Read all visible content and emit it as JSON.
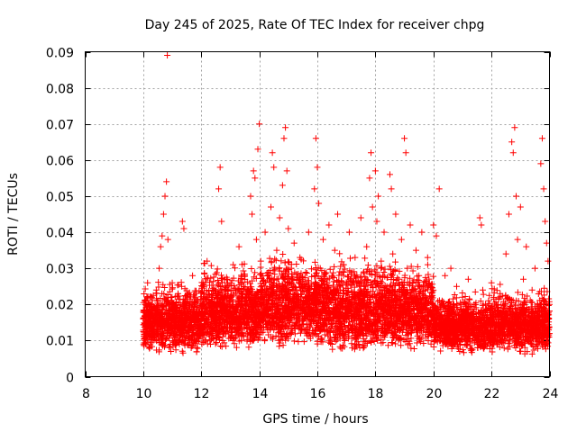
{
  "chart_data": {
    "type": "scatter",
    "title": "Day 245 of 2025, Rate Of TEC Index for receiver chpg",
    "xlabel": "GPS time / hours",
    "ylabel": "ROTI / TECUs",
    "xlim": [
      8,
      24
    ],
    "ylim": [
      0,
      0.09
    ],
    "x_ticks": [
      "8",
      "10",
      "12",
      "14",
      "16",
      "18",
      "20",
      "22",
      "24"
    ],
    "y_ticks": [
      "0",
      "0.01",
      "0.02",
      "0.03",
      "0.04",
      "0.05",
      "0.06",
      "0.07",
      "0.08",
      "0.09"
    ],
    "grid": true,
    "marker": "plus",
    "color": "#ff0000",
    "series": [
      {
        "points": [
          [
            10.0,
            0.016
          ],
          [
            10.05,
            0.021
          ],
          [
            10.1,
            0.012
          ],
          [
            10.15,
            0.026
          ],
          [
            10.2,
            0.018
          ],
          [
            10.25,
            0.014
          ],
          [
            10.3,
            0.022
          ],
          [
            10.35,
            0.011
          ],
          [
            10.4,
            0.019
          ],
          [
            10.45,
            0.024
          ],
          [
            10.5,
            0.015
          ],
          [
            10.55,
            0.03
          ],
          [
            10.6,
            0.036
          ],
          [
            10.65,
            0.039
          ],
          [
            10.7,
            0.045
          ],
          [
            10.75,
            0.05
          ],
          [
            10.8,
            0.054
          ],
          [
            10.83,
            0.089
          ],
          [
            10.85,
            0.038
          ],
          [
            10.9,
            0.02
          ],
          [
            10.95,
            0.014
          ],
          [
            11.0,
            0.026
          ],
          [
            11.05,
            0.012
          ],
          [
            11.1,
            0.019
          ],
          [
            11.2,
            0.023
          ],
          [
            11.3,
            0.017
          ],
          [
            11.35,
            0.043
          ],
          [
            11.4,
            0.041
          ],
          [
            11.45,
            0.01
          ],
          [
            11.5,
            0.02
          ],
          [
            11.6,
            0.015
          ],
          [
            11.7,
            0.028
          ],
          [
            11.8,
            0.022
          ],
          [
            11.9,
            0.018
          ],
          [
            12.0,
            0.013
          ],
          [
            12.1,
            0.025
          ],
          [
            12.2,
            0.032
          ],
          [
            12.3,
            0.019
          ],
          [
            12.4,
            0.024
          ],
          [
            12.5,
            0.016
          ],
          [
            12.6,
            0.052
          ],
          [
            12.65,
            0.058
          ],
          [
            12.7,
            0.043
          ],
          [
            12.8,
            0.021
          ],
          [
            12.9,
            0.027
          ],
          [
            13.0,
            0.018
          ],
          [
            13.1,
            0.031
          ],
          [
            13.2,
            0.024
          ],
          [
            13.3,
            0.036
          ],
          [
            13.4,
            0.02
          ],
          [
            13.5,
            0.028
          ],
          [
            13.6,
            0.015
          ],
          [
            13.7,
            0.05
          ],
          [
            13.75,
            0.045
          ],
          [
            13.8,
            0.057
          ],
          [
            13.85,
            0.055
          ],
          [
            13.9,
            0.038
          ],
          [
            13.95,
            0.063
          ],
          [
            14.0,
            0.07
          ],
          [
            14.05,
            0.032
          ],
          [
            14.1,
            0.024
          ],
          [
            14.2,
            0.04
          ],
          [
            14.3,
            0.028
          ],
          [
            14.4,
            0.047
          ],
          [
            14.45,
            0.062
          ],
          [
            14.5,
            0.058
          ],
          [
            14.6,
            0.035
          ],
          [
            14.7,
            0.044
          ],
          [
            14.8,
            0.053
          ],
          [
            14.85,
            0.066
          ],
          [
            14.9,
            0.069
          ],
          [
            14.95,
            0.057
          ],
          [
            15.0,
            0.041
          ],
          [
            15.1,
            0.03
          ],
          [
            15.2,
            0.037
          ],
          [
            15.3,
            0.022
          ],
          [
            15.4,
            0.033
          ],
          [
            15.5,
            0.027
          ],
          [
            15.6,
            0.019
          ],
          [
            15.7,
            0.04
          ],
          [
            15.8,
            0.025
          ],
          [
            15.9,
            0.052
          ],
          [
            15.95,
            0.066
          ],
          [
            16.0,
            0.058
          ],
          [
            16.05,
            0.048
          ],
          [
            16.1,
            0.03
          ],
          [
            16.2,
            0.038
          ],
          [
            16.3,
            0.024
          ],
          [
            16.4,
            0.042
          ],
          [
            16.5,
            0.028
          ],
          [
            16.6,
            0.035
          ],
          [
            16.7,
            0.045
          ],
          [
            16.8,
            0.02
          ],
          [
            16.9,
            0.031
          ],
          [
            17.0,
            0.026
          ],
          [
            17.1,
            0.04
          ],
          [
            17.2,
            0.022
          ],
          [
            17.3,
            0.033
          ],
          [
            17.4,
            0.018
          ],
          [
            17.5,
            0.044
          ],
          [
            17.6,
            0.029
          ],
          [
            17.7,
            0.036
          ],
          [
            17.8,
            0.055
          ],
          [
            17.85,
            0.062
          ],
          [
            17.9,
            0.047
          ],
          [
            18.0,
            0.057
          ],
          [
            18.05,
            0.043
          ],
          [
            18.1,
            0.05
          ],
          [
            18.2,
            0.032
          ],
          [
            18.3,
            0.04
          ],
          [
            18.4,
            0.025
          ],
          [
            18.5,
            0.056
          ],
          [
            18.55,
            0.052
          ],
          [
            18.6,
            0.034
          ],
          [
            18.7,
            0.045
          ],
          [
            18.8,
            0.027
          ],
          [
            18.9,
            0.038
          ],
          [
            19.0,
            0.066
          ],
          [
            19.05,
            0.062
          ],
          [
            19.1,
            0.03
          ],
          [
            19.2,
            0.042
          ],
          [
            19.3,
            0.022
          ],
          [
            19.4,
            0.035
          ],
          [
            19.5,
            0.028
          ],
          [
            19.6,
            0.04
          ],
          [
            19.7,
            0.019
          ],
          [
            19.8,
            0.033
          ],
          [
            19.9,
            0.025
          ],
          [
            20.0,
            0.042
          ],
          [
            20.1,
            0.039
          ],
          [
            20.2,
            0.052
          ],
          [
            20.3,
            0.021
          ],
          [
            20.4,
            0.028
          ],
          [
            20.5,
            0.016
          ],
          [
            20.6,
            0.03
          ],
          [
            20.7,
            0.02
          ],
          [
            20.8,
            0.025
          ],
          [
            20.9,
            0.014
          ],
          [
            21.0,
            0.022
          ],
          [
            21.1,
            0.018
          ],
          [
            21.2,
            0.027
          ],
          [
            21.3,
            0.012
          ],
          [
            21.4,
            0.02
          ],
          [
            21.5,
            0.016
          ],
          [
            21.6,
            0.044
          ],
          [
            21.65,
            0.042
          ],
          [
            21.7,
            0.024
          ],
          [
            21.8,
            0.015
          ],
          [
            21.9,
            0.021
          ],
          [
            22.0,
            0.026
          ],
          [
            22.1,
            0.012
          ],
          [
            22.2,
            0.019
          ],
          [
            22.3,
            0.023
          ],
          [
            22.4,
            0.014
          ],
          [
            22.5,
            0.034
          ],
          [
            22.6,
            0.045
          ],
          [
            22.7,
            0.065
          ],
          [
            22.75,
            0.062
          ],
          [
            22.8,
            0.069
          ],
          [
            22.85,
            0.05
          ],
          [
            22.9,
            0.038
          ],
          [
            23.0,
            0.047
          ],
          [
            23.1,
            0.027
          ],
          [
            23.2,
            0.036
          ],
          [
            23.3,
            0.018
          ],
          [
            23.4,
            0.024
          ],
          [
            23.5,
            0.03
          ],
          [
            23.6,
            0.015
          ],
          [
            23.7,
            0.059
          ],
          [
            23.75,
            0.066
          ],
          [
            23.8,
            0.052
          ],
          [
            23.85,
            0.043
          ],
          [
            23.9,
            0.037
          ],
          [
            23.95,
            0.032
          ],
          [
            24.0,
            0.02
          ]
        ],
        "dense_band": [
          {
            "x_range": [
              10.0,
              12.0
            ],
            "y_range": [
              0.006,
              0.028
            ]
          },
          {
            "x_range": [
              12.0,
              14.0
            ],
            "y_range": [
              0.007,
              0.033
            ]
          },
          {
            "x_range": [
              14.0,
              16.0
            ],
            "y_range": [
              0.008,
              0.036
            ]
          },
          {
            "x_range": [
              16.0,
              18.0
            ],
            "y_range": [
              0.006,
              0.036
            ]
          },
          {
            "x_range": [
              18.0,
              20.0
            ],
            "y_range": [
              0.007,
              0.034
            ]
          },
          {
            "x_range": [
              20.0,
              22.0
            ],
            "y_range": [
              0.006,
              0.025
            ]
          },
          {
            "x_range": [
              22.0,
              24.0
            ],
            "y_range": [
              0.006,
              0.026
            ]
          }
        ]
      }
    ]
  }
}
